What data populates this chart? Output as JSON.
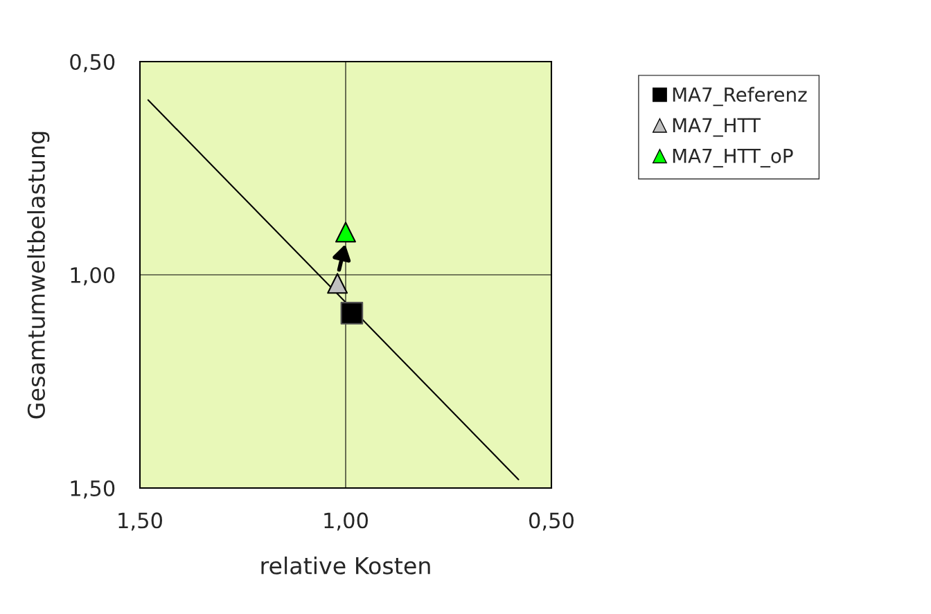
{
  "chart_data": {
    "type": "scatter",
    "xlabel": "relative Kosten",
    "ylabel": "Gesamtumweltbelastung",
    "xlim": [
      1.5,
      0.5
    ],
    "ylim": [
      1.5,
      0.5
    ],
    "xticks": [
      {
        "value": 1.5,
        "label": "1,50"
      },
      {
        "value": 1.0,
        "label": "1,00"
      },
      {
        "value": 0.5,
        "label": "0,50"
      }
    ],
    "yticks": [
      {
        "value": 1.5,
        "label": "1,50"
      },
      {
        "value": 1.0,
        "label": "1,00"
      },
      {
        "value": 0.5,
        "label": "0,50"
      }
    ],
    "grid": true,
    "legend": "top right",
    "series": [
      {
        "name": "MA7_Referenz",
        "color": "#000000",
        "marker": "square",
        "x": [
          0.985
        ],
        "values": [
          1.09
        ]
      },
      {
        "name": "MA7_HTT",
        "color": "#c0c0c0",
        "marker": "triangle",
        "x": [
          1.02
        ],
        "values": [
          1.02
        ]
      },
      {
        "name": "MA7_HTT_oP",
        "color": "#00ff00",
        "marker": "triangle",
        "x": [
          1.0
        ],
        "values": [
          0.9
        ]
      },
      {
        "type": "line",
        "color": "#000000",
        "marker": "none",
        "x": [
          1.48,
          0.58
        ],
        "values": [
          0.59,
          1.48
        ]
      }
    ]
  }
}
